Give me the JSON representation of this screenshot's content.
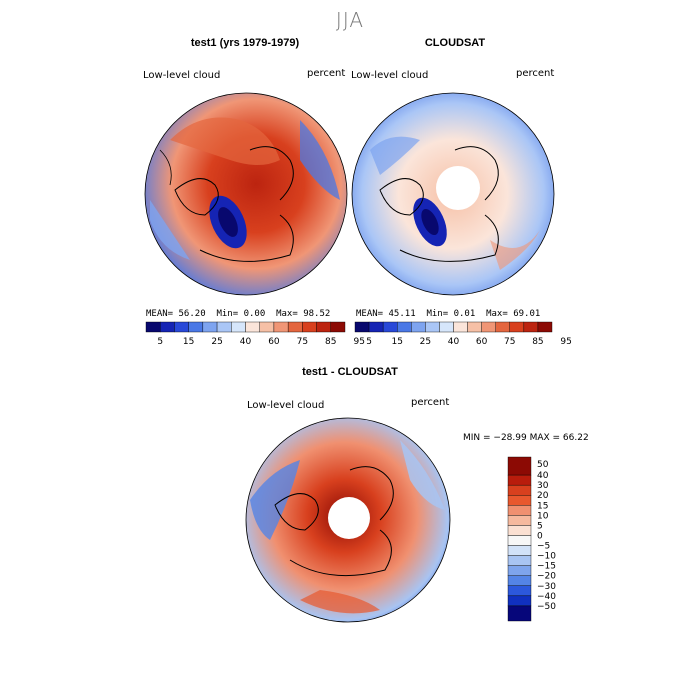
{
  "season": "JJA",
  "panels": [
    {
      "title": "test1 (yrs 1979-1979)",
      "variable": "Low-level cloud",
      "units": "percent",
      "stats": {
        "mean_label": "MEAN=",
        "mean": "56.20",
        "min_label": "Min=",
        "min": "0.00",
        "max_label": "Max=",
        "max": "98.52"
      },
      "colorbar_labels": [
        "5",
        "15",
        "25",
        "40",
        "60",
        "75",
        "85",
        "95"
      ]
    },
    {
      "title": "CLOUDSAT",
      "variable": "Low-level cloud",
      "units": "percent",
      "stats": {
        "mean_label": "MEAN=",
        "mean": "45.11",
        "min_label": "Min=",
        "min": "0.01",
        "max_label": "Max=",
        "max": "69.01"
      },
      "colorbar_labels": [
        "5",
        "15",
        "25",
        "40",
        "60",
        "75",
        "85",
        "95"
      ]
    }
  ],
  "diff": {
    "title": "test1 - CLOUDSAT",
    "variable": "Low-level cloud",
    "units": "percent",
    "minmax": "MIN = −28.99 MAX =   66.22",
    "colorbar_labels": [
      "50",
      "40",
      "30",
      "20",
      "15",
      "10",
      "5",
      "0",
      "−5",
      "−10",
      "−15",
      "−20",
      "−30",
      "−40",
      "−50"
    ]
  },
  "colors": {
    "abs_scale": [
      "#08086e",
      "#1524b4",
      "#2848d8",
      "#4a78e6",
      "#7ea4f0",
      "#aac6f6",
      "#d6e6fb",
      "#fbe5da",
      "#f6c0a6",
      "#f09676",
      "#e4663f",
      "#d8401e",
      "#bc2410",
      "#8c0a04"
    ],
    "diff_scale": [
      "#8c0a04",
      "#b81c0c",
      "#d8401e",
      "#e8582e",
      "#f09070",
      "#f6b99e",
      "#fbe0d2",
      "#f7f7f7",
      "#d2e2f8",
      "#a8c4f2",
      "#7ea4ec",
      "#5484e6",
      "#2c58dc",
      "#1030c0",
      "#06067a"
    ]
  }
}
